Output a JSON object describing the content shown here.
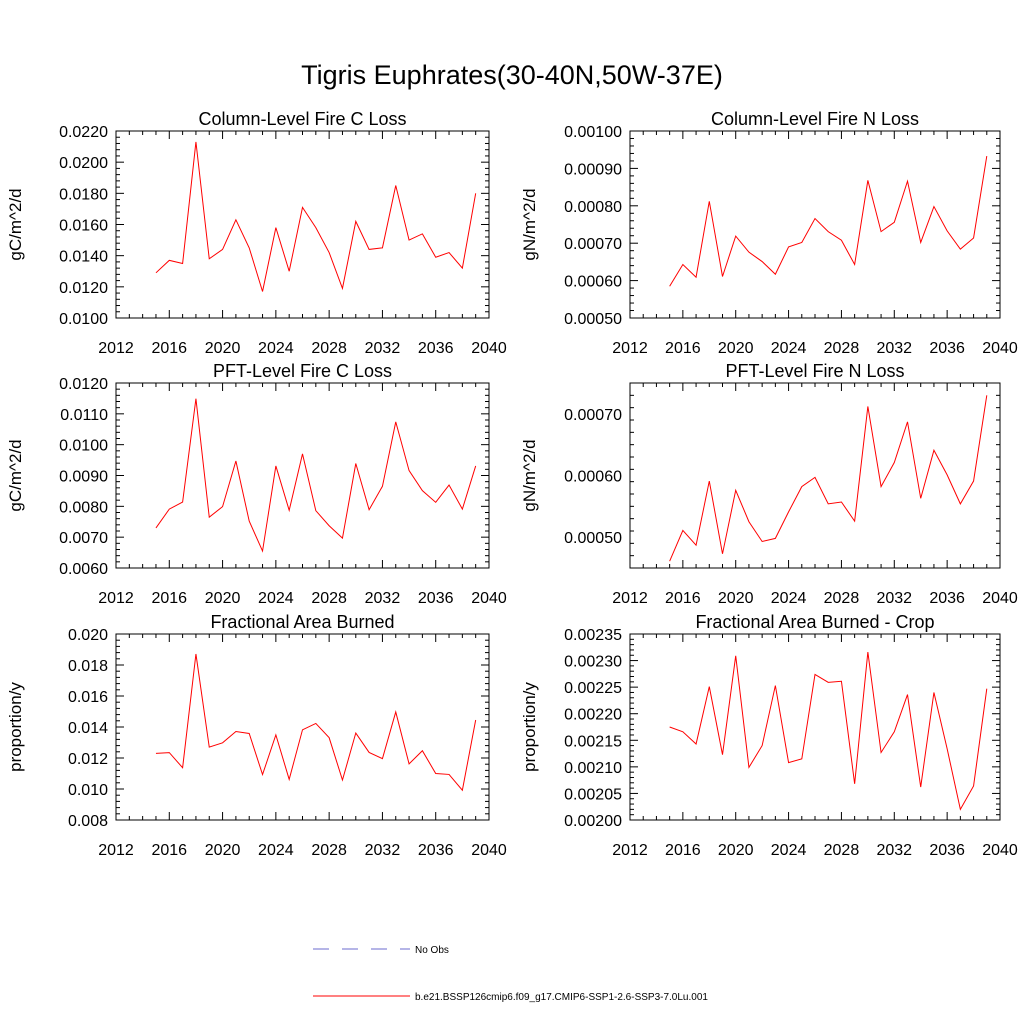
{
  "title": "Tigris Euphrates(30-40N,50W-37E)",
  "legend": {
    "entries": [
      {
        "label": "No Obs",
        "color": "#6b6bcf",
        "dash": "dashed"
      },
      {
        "label": "b.e21.BSSP126cmip6.f09_g17.CMIP6-SSP1-2.6-SSP3-7.0Lu.001",
        "color": "#ff0000",
        "dash": "solid"
      }
    ]
  },
  "chart_data": [
    {
      "type": "line",
      "title": "Column-Level Fire C Loss",
      "ylabel": "gC/m^2/d",
      "xlim": [
        2012,
        2040
      ],
      "ylim": [
        0.01,
        0.022
      ],
      "xticks": [
        2012,
        2016,
        2020,
        2024,
        2028,
        2032,
        2036,
        2040
      ],
      "yticks": [
        0.01,
        0.012,
        0.014,
        0.016,
        0.018,
        0.02,
        0.022
      ],
      "ytick_labels": [
        "0.0100",
        "0.0120",
        "0.0140",
        "0.0160",
        "0.0180",
        "0.0200",
        "0.0220"
      ],
      "x": [
        2015,
        2016,
        2017,
        2018,
        2019,
        2020,
        2021,
        2022,
        2023,
        2024,
        2025,
        2026,
        2027,
        2028,
        2029,
        2030,
        2031,
        2032,
        2033,
        2034,
        2035,
        2036,
        2037,
        2038,
        2039
      ],
      "series": [
        {
          "name": "b.e21.BSSP126cmip6.f09_g17.CMIP6-SSP1-2.6-SSP3-7.0Lu.001",
          "color": "#ff0000",
          "values": [
            0.0129,
            0.0137,
            0.0135,
            0.0213,
            0.0138,
            0.0144,
            0.0163,
            0.0145,
            0.0117,
            0.0158,
            0.013,
            0.0171,
            0.0158,
            0.0142,
            0.0119,
            0.0162,
            0.0144,
            0.0145,
            0.0185,
            0.015,
            0.0154,
            0.0139,
            0.0142,
            0.0132,
            0.018
          ]
        }
      ]
    },
    {
      "type": "line",
      "title": "Column-Level Fire N Loss",
      "ylabel": "gN/m^2/d",
      "xlim": [
        2012,
        2040
      ],
      "ylim": [
        0.0005,
        0.001
      ],
      "xticks": [
        2012,
        2016,
        2020,
        2024,
        2028,
        2032,
        2036,
        2040
      ],
      "yticks": [
        0.0005,
        0.0006,
        0.0007,
        0.0008,
        0.0009,
        0.001
      ],
      "ytick_labels": [
        "0.00050",
        "0.00060",
        "0.00070",
        "0.00080",
        "0.00090",
        "0.00100"
      ],
      "x": [
        2015,
        2016,
        2017,
        2018,
        2019,
        2020,
        2021,
        2022,
        2023,
        2024,
        2025,
        2026,
        2027,
        2028,
        2029,
        2030,
        2031,
        2032,
        2033,
        2034,
        2035,
        2036,
        2037,
        2038,
        2039
      ],
      "series": [
        {
          "name": "b.e21.BSSP126cmip6.f09_g17.CMIP6-SSP1-2.6-SSP3-7.0Lu.001",
          "color": "#ff0000",
          "values": [
            0.000585,
            0.000643,
            0.000609,
            0.000812,
            0.000611,
            0.000719,
            0.000676,
            0.000651,
            0.000617,
            0.00069,
            0.000702,
            0.000766,
            0.000731,
            0.000708,
            0.000643,
            0.000868,
            0.000731,
            0.000756,
            0.000866,
            0.000702,
            0.000798,
            0.000733,
            0.000684,
            0.000714,
            0.000933
          ]
        }
      ]
    },
    {
      "type": "line",
      "title": "PFT-Level Fire C Loss",
      "ylabel": "gC/m^2/d",
      "xlim": [
        2012,
        2040
      ],
      "ylim": [
        0.006,
        0.012
      ],
      "xticks": [
        2012,
        2016,
        2020,
        2024,
        2028,
        2032,
        2036,
        2040
      ],
      "yticks": [
        0.006,
        0.007,
        0.008,
        0.009,
        0.01,
        0.011,
        0.012
      ],
      "ytick_labels": [
        "0.0060",
        "0.0070",
        "0.0080",
        "0.0090",
        "0.0100",
        "0.0110",
        "0.0120"
      ],
      "x": [
        2015,
        2016,
        2017,
        2018,
        2019,
        2020,
        2021,
        2022,
        2023,
        2024,
        2025,
        2026,
        2027,
        2028,
        2029,
        2030,
        2031,
        2032,
        2033,
        2034,
        2035,
        2036,
        2037,
        2038,
        2039
      ],
      "series": [
        {
          "name": "b.e21.BSSP126cmip6.f09_g17.CMIP6-SSP1-2.6-SSP3-7.0Lu.001",
          "color": "#ff0000",
          "values": [
            0.0073,
            0.00791,
            0.00814,
            0.01149,
            0.00765,
            0.00799,
            0.00947,
            0.00752,
            0.00655,
            0.00931,
            0.00787,
            0.0097,
            0.00786,
            0.00737,
            0.00697,
            0.00939,
            0.00789,
            0.00865,
            0.01074,
            0.00916,
            0.00851,
            0.00813,
            0.00869,
            0.00791,
            0.00931
          ]
        }
      ]
    },
    {
      "type": "line",
      "title": "PFT-Level Fire N Loss",
      "ylabel": "gN/m^2/d",
      "xlim": [
        2012,
        2040
      ],
      "ylim": [
        0.00045,
        0.00075
      ],
      "xticks": [
        2012,
        2016,
        2020,
        2024,
        2028,
        2032,
        2036,
        2040
      ],
      "yticks": [
        0.0005,
        0.0006,
        0.0007
      ],
      "ytick_labels": [
        "0.00050",
        "0.00060",
        "0.00070"
      ],
      "x": [
        2015,
        2016,
        2017,
        2018,
        2019,
        2020,
        2021,
        2022,
        2023,
        2024,
        2025,
        2026,
        2027,
        2028,
        2029,
        2030,
        2031,
        2032,
        2033,
        2034,
        2035,
        2036,
        2037,
        2038,
        2039
      ],
      "series": [
        {
          "name": "b.e21.BSSP126cmip6.f09_g17.CMIP6-SSP1-2.6-SSP3-7.0Lu.001",
          "color": "#ff0000",
          "values": [
            0.000461,
            0.000511,
            0.000487,
            0.000591,
            0.000473,
            0.000576,
            0.000525,
            0.000493,
            0.000498,
            0.000541,
            0.000582,
            0.000597,
            0.000554,
            0.000557,
            0.000526,
            0.000712,
            0.000582,
            0.000621,
            0.000687,
            0.000563,
            0.000641,
            0.000601,
            0.000554,
            0.000591,
            0.00073
          ]
        }
      ]
    },
    {
      "type": "line",
      "title": "Fractional Area Burned",
      "ylabel": "proportion/y",
      "xlim": [
        2012,
        2040
      ],
      "ylim": [
        0.008,
        0.02
      ],
      "xticks": [
        2012,
        2016,
        2020,
        2024,
        2028,
        2032,
        2036,
        2040
      ],
      "yticks": [
        0.008,
        0.01,
        0.012,
        0.014,
        0.016,
        0.018,
        0.02
      ],
      "ytick_labels": [
        "0.008",
        "0.010",
        "0.012",
        "0.014",
        "0.016",
        "0.018",
        "0.020"
      ],
      "x": [
        2015,
        2016,
        2017,
        2018,
        2019,
        2020,
        2021,
        2022,
        2023,
        2024,
        2025,
        2026,
        2027,
        2028,
        2029,
        2030,
        2031,
        2032,
        2033,
        2034,
        2035,
        2036,
        2037,
        2038,
        2039
      ],
      "series": [
        {
          "name": "b.e21.BSSP126cmip6.f09_g17.CMIP6-SSP1-2.6-SSP3-7.0Lu.001",
          "color": "#ff0000",
          "values": [
            0.0123,
            0.01235,
            0.01137,
            0.01871,
            0.0127,
            0.01298,
            0.01371,
            0.01358,
            0.01093,
            0.01349,
            0.01062,
            0.01382,
            0.01423,
            0.01331,
            0.01058,
            0.01361,
            0.01236,
            0.01196,
            0.01497,
            0.01162,
            0.01247,
            0.011,
            0.01094,
            0.00992,
            0.01445
          ]
        }
      ]
    },
    {
      "type": "line",
      "title": "Fractional Area Burned - Crop",
      "ylabel": "proportion/y",
      "xlim": [
        2012,
        2040
      ],
      "ylim": [
        0.002,
        0.00235
      ],
      "xticks": [
        2012,
        2016,
        2020,
        2024,
        2028,
        2032,
        2036,
        2040
      ],
      "yticks": [
        0.002,
        0.00205,
        0.0021,
        0.00215,
        0.0022,
        0.00225,
        0.0023,
        0.00235
      ],
      "ytick_labels": [
        "0.00200",
        "0.00205",
        "0.00210",
        "0.00215",
        "0.00220",
        "0.00225",
        "0.00230",
        "0.00235"
      ],
      "x": [
        2015,
        2016,
        2017,
        2018,
        2019,
        2020,
        2021,
        2022,
        2023,
        2024,
        2025,
        2026,
        2027,
        2028,
        2029,
        2030,
        2031,
        2032,
        2033,
        2034,
        2035,
        2036,
        2037,
        2038,
        2039
      ],
      "series": [
        {
          "name": "b.e21.BSSP126cmip6.f09_g17.CMIP6-SSP1-2.6-SSP3-7.0Lu.001",
          "color": "#ff0000",
          "values": [
            0.002175,
            0.002166,
            0.002143,
            0.002251,
            0.002123,
            0.002309,
            0.002099,
            0.00214,
            0.002253,
            0.002108,
            0.002115,
            0.002274,
            0.002259,
            0.002261,
            0.002068,
            0.002316,
            0.002127,
            0.002166,
            0.002236,
            0.002062,
            0.00224,
            0.002134,
            0.00202,
            0.002064,
            0.002247
          ]
        }
      ]
    }
  ]
}
